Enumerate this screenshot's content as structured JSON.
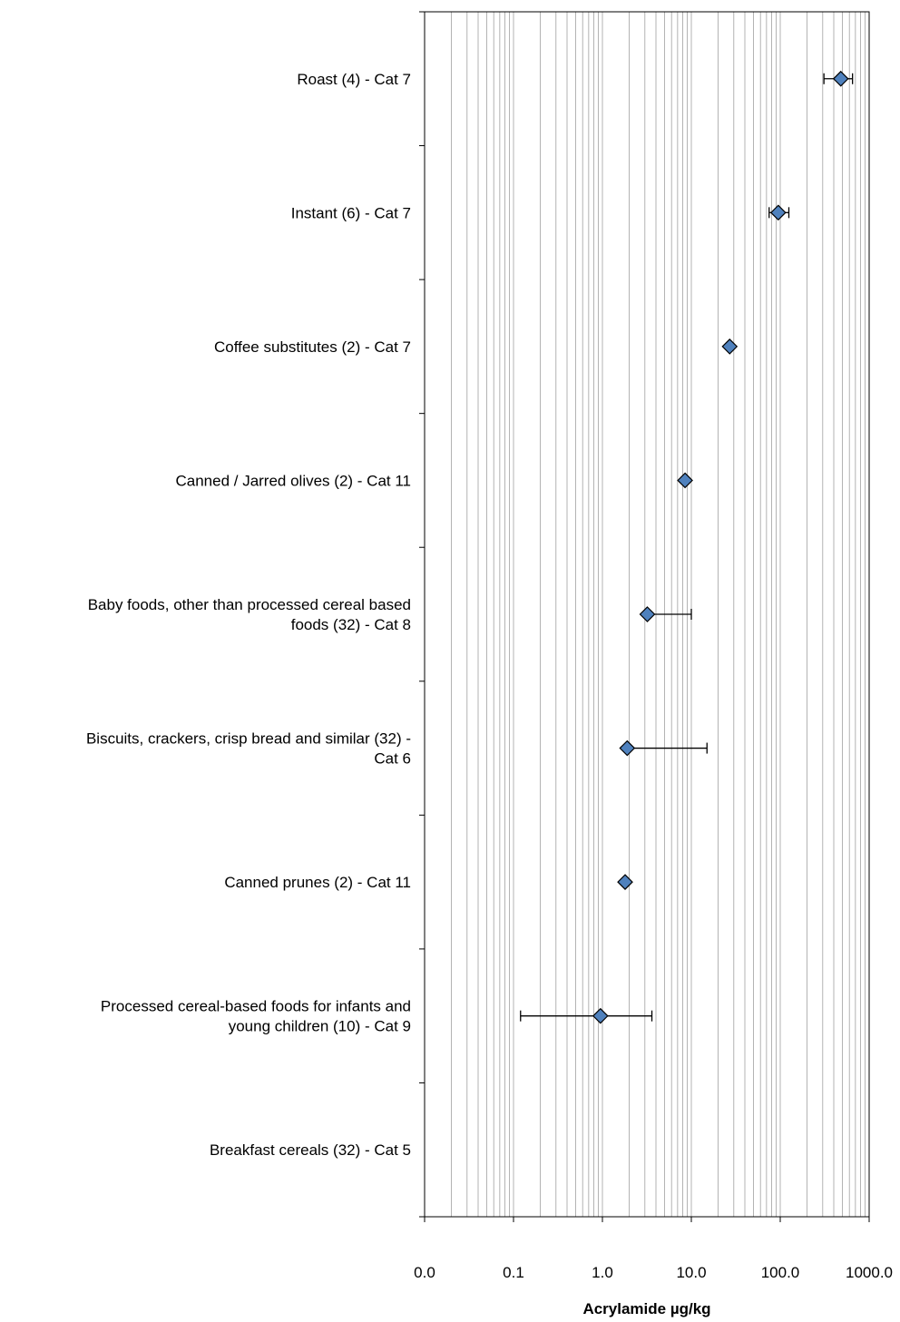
{
  "chart_data": {
    "type": "scatter",
    "orientation": "horizontal",
    "x_scale": "log",
    "xlim": [
      0.01,
      1000
    ],
    "x_ticks": [
      0.01,
      0.1,
      1,
      10,
      100,
      1000
    ],
    "x_tick_labels": [
      "0.0",
      "0.1",
      "1.0",
      "10.0",
      "100.0",
      "1000.0"
    ],
    "xlabel": "Acrylamide µg/kg",
    "ylabel": "",
    "title": "",
    "grid": true,
    "categories": [
      [
        "Roast (4) - Cat 7"
      ],
      [
        "Instant (6) - Cat 7"
      ],
      [
        "Coffee substitutes (2) - Cat 7"
      ],
      [
        "Canned / Jarred olives (2) - Cat 11"
      ],
      [
        "Baby foods, other than processed cereal based",
        "foods (32) - Cat 8"
      ],
      [
        "Biscuits, crackers, crisp bread and similar (32) -",
        "Cat 6"
      ],
      [
        "Canned prunes (2) - Cat 11"
      ],
      [
        "Processed cereal-based foods for infants and",
        "young children (10) - Cat 9"
      ],
      [
        "Breakfast cereals (32) - Cat 5"
      ]
    ],
    "points": [
      {
        "value": 480,
        "low": 310,
        "high": 650
      },
      {
        "value": 95,
        "low": 75,
        "high": 125
      },
      {
        "value": 27,
        "low": null,
        "high": null
      },
      {
        "value": 8.5,
        "low": null,
        "high": null
      },
      {
        "value": 3.2,
        "low": null,
        "high": 10
      },
      {
        "value": 1.9,
        "low": null,
        "high": 15
      },
      {
        "value": 1.8,
        "low": null,
        "high": null
      },
      {
        "value": 0.95,
        "low": 0.12,
        "high": 3.6
      },
      null
    ],
    "colors": {
      "marker_fill": "#4f81bd",
      "marker_stroke": "#000000",
      "gridline": "#b3b3b3",
      "axis": "#000000"
    }
  }
}
